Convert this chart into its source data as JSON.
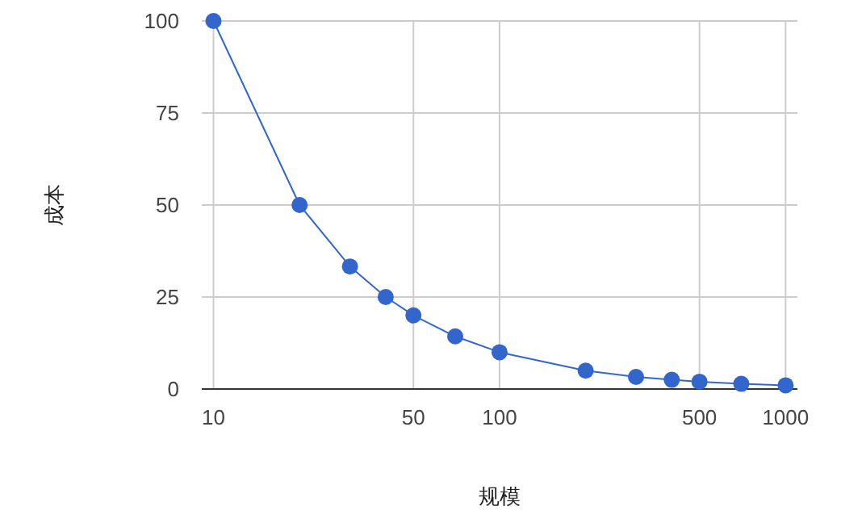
{
  "chart_data": {
    "type": "line",
    "xlabel": "规模",
    "ylabel": "成本",
    "x": [
      10,
      20,
      30,
      40,
      50,
      70,
      100,
      200,
      300,
      400,
      500,
      700,
      1000
    ],
    "series": [
      {
        "color": "#3366cc",
        "values": [
          100,
          50,
          33.3,
          25,
          20,
          14.3,
          10,
          5,
          3.3,
          2.5,
          2,
          1.4,
          1
        ]
      }
    ],
    "log": "x",
    "xlim": [
      9.1,
      1100
    ],
    "xticks": [
      10,
      50,
      100,
      500,
      1000
    ],
    "ylim": [
      0,
      100
    ],
    "yticks": [
      0,
      25,
      50,
      75,
      100
    ],
    "grid": true,
    "marker": "circle",
    "line_style": "solid"
  }
}
